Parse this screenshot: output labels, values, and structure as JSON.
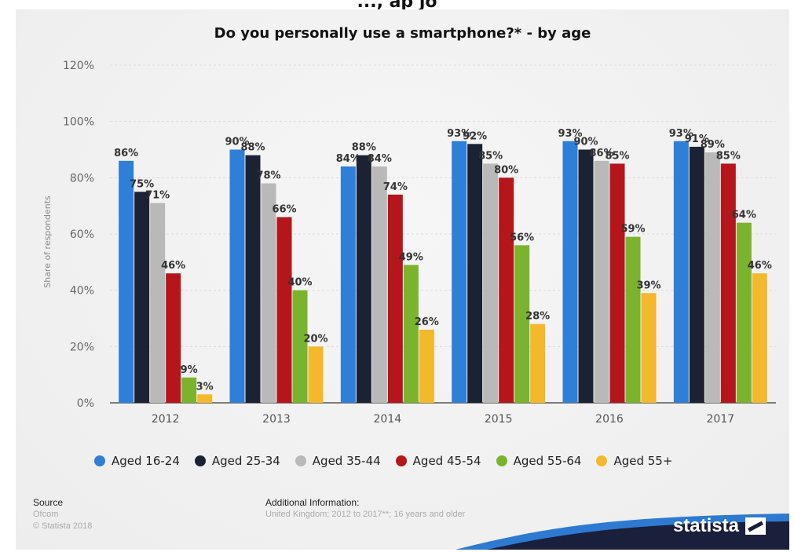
{
  "page_top_fragment": "..., ap jo",
  "source": {
    "heading": "Source",
    "lines": [
      "Ofcom",
      "© Statista 2018"
    ]
  },
  "additional_info": {
    "heading": "Additional Information:",
    "text": "United Kingdom; 2012 to 2017**; 16 years and older"
  },
  "brand": {
    "name": "statista",
    "icon": "statista-logo-icon"
  },
  "colors": {
    "background": "#f2f2f2",
    "footer_band": "#1a1f3c",
    "footer_accent": "#2e7ad1"
  },
  "chart_data": {
    "type": "bar",
    "title": "Do you personally use a smartphone?* - by age",
    "xlabel": "",
    "ylabel": "Share of respondents",
    "ylim": [
      0,
      120
    ],
    "yticks": [
      0,
      20,
      40,
      60,
      80,
      100,
      120
    ],
    "ytick_labels": [
      "0%",
      "20%",
      "40%",
      "60%",
      "80%",
      "100%",
      "120%"
    ],
    "categories": [
      "2012",
      "2013",
      "2014",
      "2015",
      "2016",
      "2017"
    ],
    "grid": true,
    "legend_position": "bottom",
    "data_label_suffix": "%",
    "series": [
      {
        "name": "Aged 16-24",
        "color": "#2f7ed8",
        "values": [
          86,
          90,
          84,
          93,
          93,
          93
        ]
      },
      {
        "name": "Aged 25-34",
        "color": "#1b2233",
        "values": [
          75,
          88,
          88,
          92,
          90,
          91
        ]
      },
      {
        "name": "Aged 35-44",
        "color": "#b9b9b9",
        "values": [
          71,
          78,
          84,
          85,
          86,
          89
        ]
      },
      {
        "name": "Aged 45-54",
        "color": "#b4161c",
        "values": [
          46,
          66,
          74,
          80,
          85,
          85
        ]
      },
      {
        "name": "Aged 55-64",
        "color": "#7bb32e",
        "values": [
          9,
          40,
          49,
          56,
          59,
          64
        ]
      },
      {
        "name": "Aged 55+",
        "color": "#f3b82b",
        "values": [
          3,
          20,
          26,
          28,
          39,
          46
        ]
      }
    ]
  }
}
